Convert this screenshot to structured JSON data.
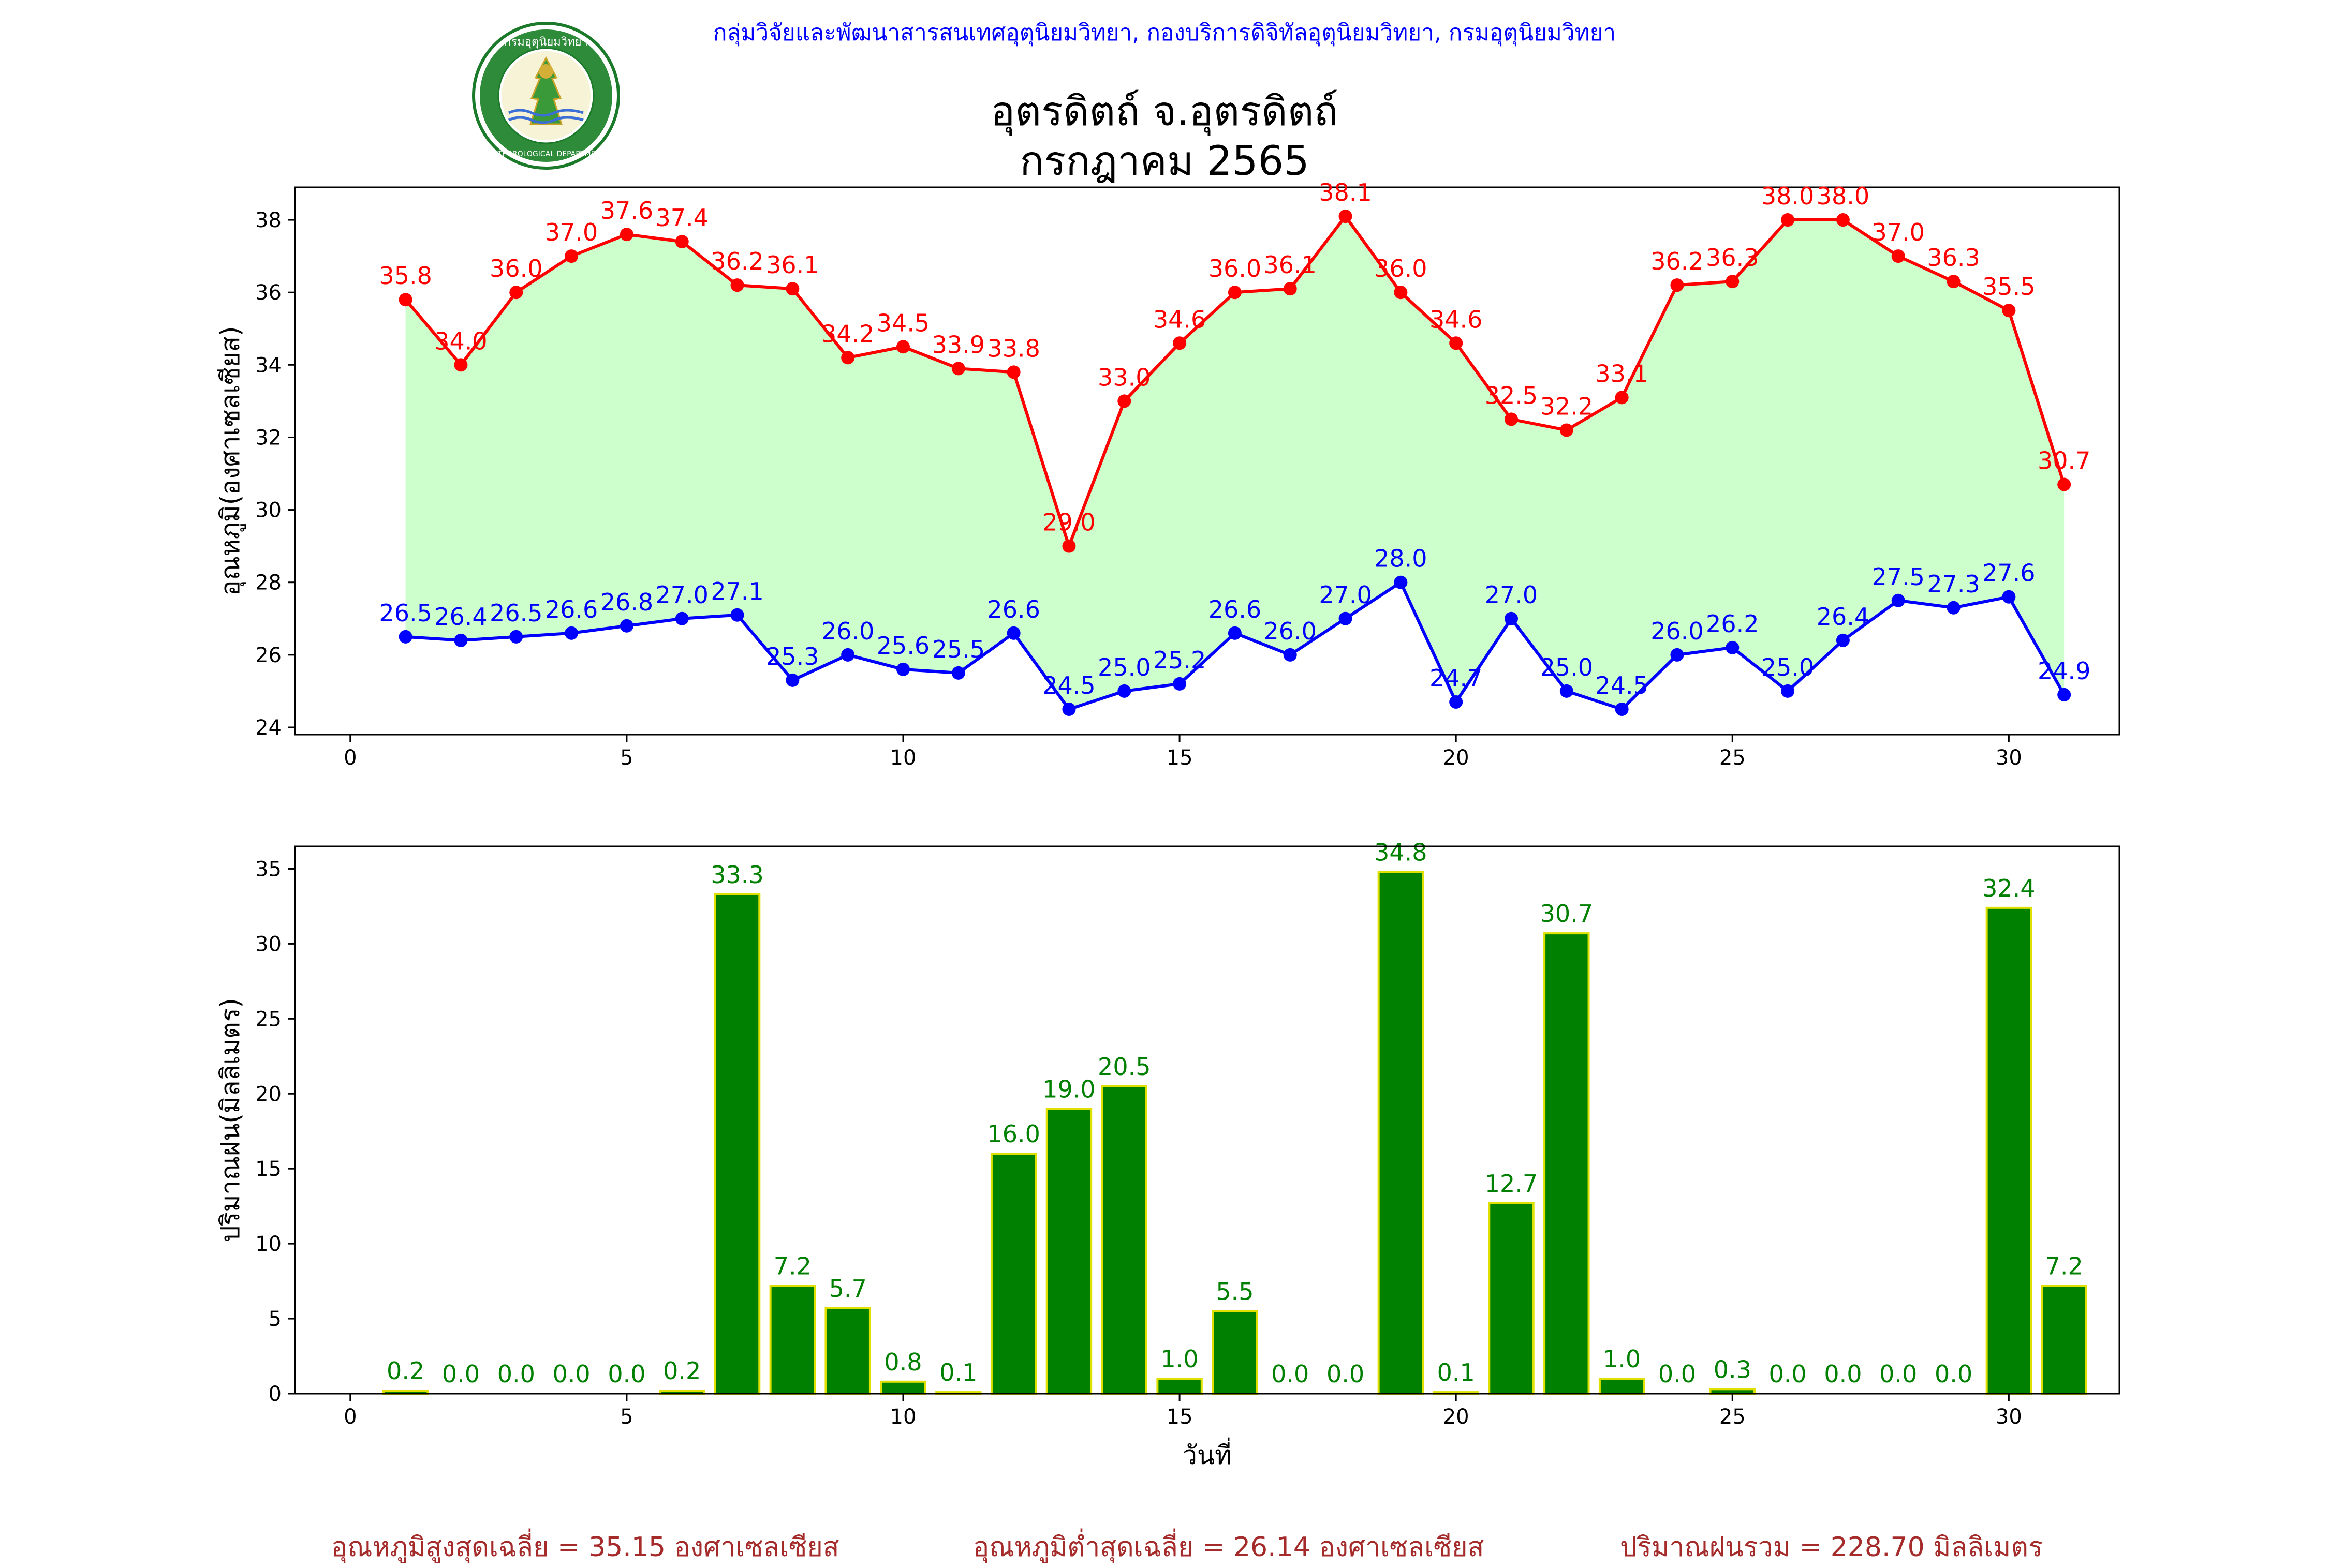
{
  "header": {
    "department_line": "กลุ่มวิจัยและพัฒนาสารสนเทศอุตุนิยมวิทยา, กองบริการดิจิทัลอุตุนิยมวิทยา, กรมอุตุนิยมวิทยา",
    "title_line1": "อุตรดิตถ์ จ.อุตรดิตถ์",
    "title_line2": "กรกฎาคม 2565",
    "logo_text_thai": "กรมอุตุนิยมวิทยา",
    "logo_text_en": "METEOROLOGICAL DEPARTMENT"
  },
  "colors": {
    "max_line": "#ff0000",
    "min_line": "#0000ff",
    "fill": "#ccffcc",
    "bar": "#008000",
    "bar_edge": "#e0e000",
    "footer": "#a52a2a",
    "header": "#0000ff"
  },
  "chart_data": [
    {
      "type": "line",
      "ylabel": "อุณหภูมิ(องศาเซลเซียส)",
      "xlim": [
        -1,
        32
      ],
      "ylim": [
        23.8,
        38.9
      ],
      "xticks": [
        0,
        5,
        10,
        15,
        20,
        25,
        30
      ],
      "yticks": [
        24,
        26,
        28,
        30,
        32,
        34,
        36,
        38
      ],
      "fill_between": true,
      "x": [
        1,
        2,
        3,
        4,
        5,
        6,
        7,
        8,
        9,
        10,
        11,
        12,
        13,
        14,
        15,
        16,
        17,
        18,
        19,
        20,
        21,
        22,
        23,
        24,
        25,
        26,
        27,
        28,
        29,
        30,
        31
      ],
      "series": [
        {
          "key": "max",
          "values": [
            35.8,
            34.0,
            36.0,
            37.0,
            37.6,
            37.4,
            36.2,
            36.1,
            34.2,
            34.5,
            33.9,
            33.8,
            29.0,
            33.0,
            34.6,
            36.0,
            36.1,
            38.1,
            36.0,
            34.6,
            32.5,
            32.2,
            33.1,
            36.2,
            36.3,
            38.0,
            38.0,
            37.0,
            36.3,
            35.5,
            30.7
          ]
        },
        {
          "key": "min",
          "values": [
            26.5,
            26.4,
            26.5,
            26.6,
            26.8,
            27.0,
            27.1,
            25.3,
            26.0,
            25.6,
            25.5,
            26.6,
            24.5,
            25.0,
            25.2,
            26.6,
            26.0,
            27.0,
            28.0,
            24.7,
            27.0,
            25.0,
            24.5,
            26.0,
            26.2,
            25.0,
            26.4,
            27.5,
            27.3,
            27.6,
            24.9
          ]
        }
      ]
    },
    {
      "type": "bar",
      "xlabel": "วันที่",
      "ylabel": "ปริมาณฝน(มิลลิเมตร)",
      "xlim": [
        -1,
        32
      ],
      "ylim": [
        0,
        36.5
      ],
      "xticks": [
        0,
        5,
        10,
        15,
        20,
        25,
        30
      ],
      "yticks": [
        0,
        5,
        10,
        15,
        20,
        25,
        30,
        35
      ],
      "categories": [
        1,
        2,
        3,
        4,
        5,
        6,
        7,
        8,
        9,
        10,
        11,
        12,
        13,
        14,
        15,
        16,
        17,
        18,
        19,
        20,
        21,
        22,
        23,
        24,
        25,
        26,
        27,
        28,
        29,
        30,
        31
      ],
      "values": [
        0.2,
        0.0,
        0.0,
        0.0,
        0.0,
        0.2,
        33.3,
        7.2,
        5.7,
        0.8,
        0.1,
        16.0,
        19.0,
        20.5,
        1.0,
        5.5,
        0.0,
        0.0,
        34.8,
        0.1,
        12.7,
        30.7,
        1.0,
        0.0,
        0.3,
        0.0,
        0.0,
        0.0,
        0.0,
        32.4,
        7.2
      ],
      "labeled_days": [
        1,
        2,
        3,
        4,
        5,
        6,
        7,
        8,
        9,
        10,
        11,
        12,
        13,
        14,
        15,
        16,
        17,
        18,
        19,
        20,
        21,
        22,
        23,
        24,
        25,
        26,
        27,
        28,
        29,
        30,
        31
      ],
      "label_skip_days": [
        17,
        18
      ]
    }
  ],
  "footer": {
    "avg_max": "อุณหภูมิสูงสุดเฉลี่ย = 35.15 องศาเซลเซียส",
    "avg_min": "อุณหภูมิต่ำสุดเฉลี่ย = 26.14 องศาเซลเซียส",
    "total_rain": "ปริมาณฝนรวม = 228.70 มิลลิเมตร"
  }
}
